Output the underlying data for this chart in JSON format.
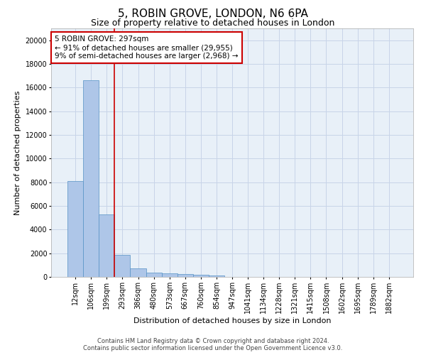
{
  "title_line1": "5, ROBIN GROVE, LONDON, N6 6PA",
  "title_line2": "Size of property relative to detached houses in London",
  "xlabel": "Distribution of detached houses by size in London",
  "ylabel": "Number of detached properties",
  "categories": [
    "12sqm",
    "106sqm",
    "199sqm",
    "293sqm",
    "386sqm",
    "480sqm",
    "573sqm",
    "667sqm",
    "760sqm",
    "854sqm",
    "947sqm",
    "1041sqm",
    "1134sqm",
    "1228sqm",
    "1321sqm",
    "1415sqm",
    "1508sqm",
    "1602sqm",
    "1695sqm",
    "1789sqm",
    "1882sqm"
  ],
  "values": [
    8100,
    16600,
    5300,
    1850,
    700,
    380,
    290,
    230,
    185,
    150,
    0,
    0,
    0,
    0,
    0,
    0,
    0,
    0,
    0,
    0,
    0
  ],
  "bar_color": "#aec6e8",
  "bar_edge_color": "#5591c5",
  "vline_color": "#cc0000",
  "annotation_text": "5 ROBIN GROVE: 297sqm\n← 91% of detached houses are smaller (29,955)\n9% of semi-detached houses are larger (2,968) →",
  "annotation_box_color": "#ffffff",
  "annotation_box_edge": "#cc0000",
  "ylim": [
    0,
    21000
  ],
  "yticks": [
    0,
    2000,
    4000,
    6000,
    8000,
    10000,
    12000,
    14000,
    16000,
    18000,
    20000
  ],
  "footer_line1": "Contains HM Land Registry data © Crown copyright and database right 2024.",
  "footer_line2": "Contains public sector information licensed under the Open Government Licence v3.0.",
  "bg_color": "#ffffff",
  "grid_color": "#c8d4e8",
  "title_fontsize": 11,
  "subtitle_fontsize": 9,
  "axis_label_fontsize": 8,
  "tick_fontsize": 7,
  "annotation_fontsize": 7.5,
  "footer_fontsize": 6
}
